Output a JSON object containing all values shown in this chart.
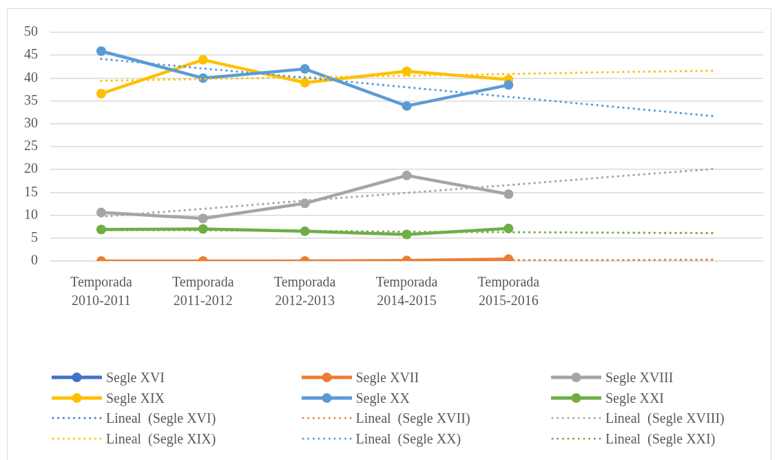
{
  "chart_data": {
    "type": "line",
    "categories": [
      "Temporada 2010-2011",
      "Temporada 2011-2012",
      "Temporada 2012-2013",
      "Temporada 2014-2015",
      "Temporada 2015-2016",
      null,
      null
    ],
    "series": [
      {
        "name": "Segle XVI",
        "color": "#4472c4",
        "values": [
          null,
          null,
          null,
          null,
          null,
          null,
          null
        ]
      },
      {
        "name": "Segle XVII",
        "color": "#ed7d31",
        "values": [
          0,
          0,
          0,
          0.1,
          0.4,
          null,
          null
        ]
      },
      {
        "name": "Segle XVIII",
        "color": "#a5a5a5",
        "values": [
          10.6,
          9.3,
          12.6,
          18.7,
          14.6,
          null,
          null
        ]
      },
      {
        "name": "Segle XIX",
        "color": "#ffc000",
        "values": [
          36.6,
          44.0,
          39.0,
          41.5,
          39.7,
          null,
          null
        ]
      },
      {
        "name": "Segle XX",
        "color": "#5b9bd5",
        "values": [
          45.9,
          40.0,
          42.0,
          33.9,
          38.5,
          null,
          null
        ]
      },
      {
        "name": "Segle XXI",
        "color": "#70ad47",
        "values": [
          6.9,
          7.0,
          6.5,
          5.8,
          7.1,
          null,
          null
        ]
      },
      {
        "name": "Lineal  (Segle XVI)",
        "color": "#4472c4",
        "line_style": "dotted",
        "marker": "none",
        "values": [
          null,
          null,
          null,
          null,
          null,
          null,
          null
        ]
      },
      {
        "name": "Lineal  (Segle XVII)",
        "color": "#ed7d31",
        "line_style": "dotted",
        "marker": "none",
        "values": [
          0,
          0,
          0.1,
          0.1,
          0.2,
          0.2,
          0.3
        ]
      },
      {
        "name": "Lineal  (Segle XVIII)",
        "color": "#a5a5a5",
        "line_style": "dotted",
        "marker": "none",
        "values": [
          9.7,
          11.4,
          13.2,
          14.9,
          16.6,
          18.4,
          20.1
        ]
      },
      {
        "name": "Lineal  (Segle XIX)",
        "color": "#ffc000",
        "line_style": "dotted",
        "marker": "none",
        "values": [
          39.4,
          39.8,
          40.2,
          40.5,
          40.9,
          41.3,
          41.6
        ]
      },
      {
        "name": "Lineal  (Segle XX)",
        "color": "#5b9bd5",
        "line_style": "dotted",
        "marker": "none",
        "values": [
          44.2,
          42.1,
          40.1,
          38.0,
          35.9,
          33.8,
          31.7
        ]
      },
      {
        "name": "Lineal  (Segle XXI)",
        "color": "#70ad47",
        "line_style": "dotted",
        "marker": "none",
        "values": [
          6.8,
          6.7,
          6.6,
          6.4,
          6.3,
          6.2,
          6.1
        ]
      }
    ],
    "ylim": [
      0,
      50
    ],
    "yticks": [
      0,
      5,
      10,
      15,
      20,
      25,
      30,
      35,
      40,
      45,
      50
    ],
    "grid": "y",
    "legend": "bottom",
    "marker": "circle",
    "line_style": "solid"
  }
}
